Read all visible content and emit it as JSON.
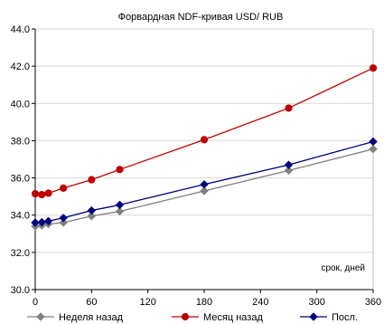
{
  "chart_data": {
    "type": "line",
    "title": "Форвардная NDF-кривая USD/ RUB",
    "xlabel": "срок, дней",
    "ylabel": "",
    "xlim": [
      0,
      360
    ],
    "ylim": [
      30.0,
      44.0
    ],
    "x_ticks": [
      0,
      60,
      120,
      180,
      240,
      300,
      360
    ],
    "y_ticks": [
      30.0,
      32.0,
      34.0,
      36.0,
      38.0,
      40.0,
      42.0,
      44.0
    ],
    "y_tick_labels": [
      "30.0",
      "32.0",
      "34.0",
      "36.0",
      "38.0",
      "40.0",
      "42.0",
      "44.0"
    ],
    "grid": "horizontal",
    "legend_position": "bottom",
    "series": [
      {
        "name": "Неделя назад",
        "color": "#808080",
        "marker": "diamond",
        "x": [
          0,
          7,
          14,
          30,
          60,
          90,
          180,
          270,
          360
        ],
        "y": [
          33.4,
          33.45,
          33.52,
          33.6,
          33.95,
          34.2,
          35.3,
          36.4,
          37.55
        ]
      },
      {
        "name": "Месяц назад",
        "color": "#c00000",
        "marker": "circle",
        "x": [
          0,
          7,
          14,
          30,
          60,
          90,
          180,
          270,
          360
        ],
        "y": [
          35.15,
          35.1,
          35.18,
          35.45,
          35.9,
          36.45,
          38.05,
          39.75,
          41.9
        ]
      },
      {
        "name": "Посл.",
        "color": "#000080",
        "marker": "diamond",
        "x": [
          0,
          7,
          14,
          30,
          60,
          90,
          180,
          270,
          360
        ],
        "y": [
          33.6,
          33.62,
          33.68,
          33.85,
          34.25,
          34.55,
          35.65,
          36.7,
          37.95
        ]
      }
    ]
  }
}
